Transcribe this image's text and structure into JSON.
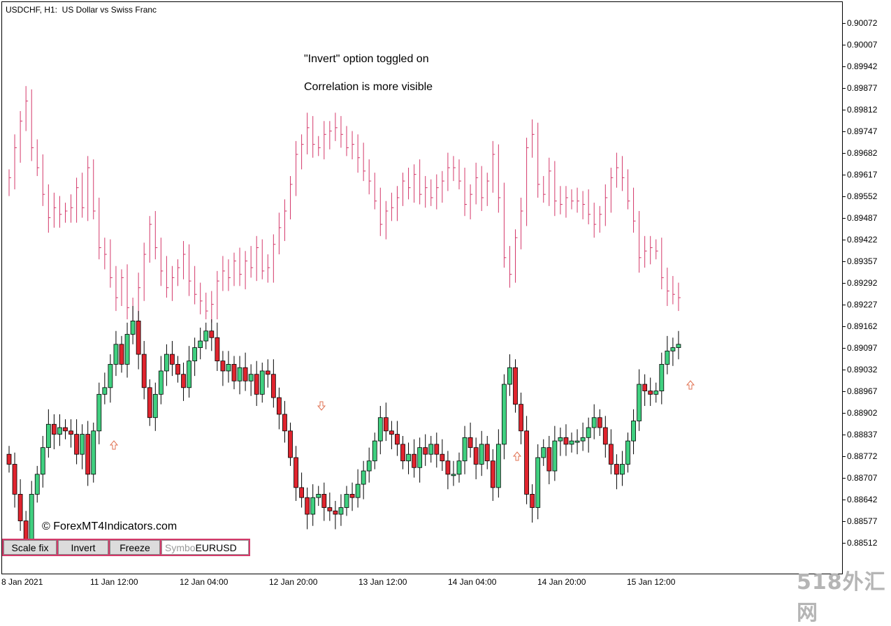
{
  "chart": {
    "title": "USDCHF, H1:  US Dollar vs Swiss Franc",
    "note_1": "\"Invert\" option toggled on",
    "note_2": "Correlation is more visible",
    "copyright": "© ForexMT4Indicators.com",
    "watermark": "518外汇网"
  },
  "toolbar": {
    "scale_fix": "Scale fix",
    "invert": "Invert",
    "freeze": "Freeze",
    "symbol_placeholder": "Symbo",
    "symbol_value": "EURUSD"
  },
  "colors": {
    "bull": "#40d080",
    "bear": "#e0242e",
    "overlay": "#d4386a",
    "arrow": "#e07050"
  },
  "price_axis": [
    "0.90072",
    "0.90007",
    "0.89942",
    "0.89877",
    "0.89812",
    "0.89747",
    "0.89682",
    "0.89617",
    "0.89552",
    "0.89487",
    "0.89422",
    "0.89357",
    "0.89292",
    "0.89227",
    "0.89162",
    "0.89097",
    "0.89032",
    "0.88967",
    "0.88902",
    "0.88837",
    "0.88772",
    "0.88707",
    "0.88642",
    "0.88577",
    "0.88512"
  ],
  "time_axis": [
    "8 Jan 2021",
    "11 Jan 12:00",
    "12 Jan 04:00",
    "12 Jan 20:00",
    "13 Jan 12:00",
    "14 Jan 04:00",
    "14 Jan 20:00",
    "15 Jan 12:00"
  ],
  "chart_data": {
    "type": "candlestick",
    "series": [
      {
        "name": "USDCHF",
        "closes": [
          0.8875,
          0.8866,
          0.8858,
          0.8852,
          0.8866,
          0.8872,
          0.888,
          0.8887,
          0.8884,
          0.8886,
          0.8885,
          0.8884,
          0.8878,
          0.8884,
          0.8872,
          0.8885,
          0.8896,
          0.8898,
          0.8905,
          0.8911,
          0.8905,
          0.8914,
          0.8918,
          0.8908,
          0.8898,
          0.8889,
          0.8896,
          0.8903,
          0.8908,
          0.8905,
          0.8902,
          0.8898,
          0.8906,
          0.891,
          0.8912,
          0.8915,
          0.8913,
          0.8906,
          0.8903,
          0.8905,
          0.89,
          0.8904,
          0.89,
          0.8902,
          0.8896,
          0.8903,
          0.8902,
          0.8895,
          0.889,
          0.8885,
          0.8877,
          0.8868,
          0.8865,
          0.886,
          0.8865,
          0.8866,
          0.8862,
          0.8861,
          0.886,
          0.8862,
          0.8866,
          0.8865,
          0.8869,
          0.8873,
          0.8876,
          0.8882,
          0.8889,
          0.8885,
          0.8884,
          0.8881,
          0.8876,
          0.8878,
          0.8874,
          0.888,
          0.8878,
          0.8881,
          0.8878,
          0.8876,
          0.8872,
          0.8872,
          0.8876,
          0.8883,
          0.888,
          0.8875,
          0.8881,
          0.8876,
          0.8868,
          0.8881,
          0.8899,
          0.8904,
          0.8893,
          0.8885,
          0.8866,
          0.8862,
          0.8877,
          0.888,
          0.8873,
          0.8882,
          0.8883,
          0.8881,
          0.8882,
          0.8882,
          0.8883,
          0.8886,
          0.8889,
          0.8886,
          0.8881,
          0.8875,
          0.8872,
          0.8875,
          0.8882,
          0.8888,
          0.8899,
          0.8897,
          0.8896,
          0.8897,
          0.8905,
          0.8909,
          0.891,
          0.8911
        ]
      }
    ]
  }
}
